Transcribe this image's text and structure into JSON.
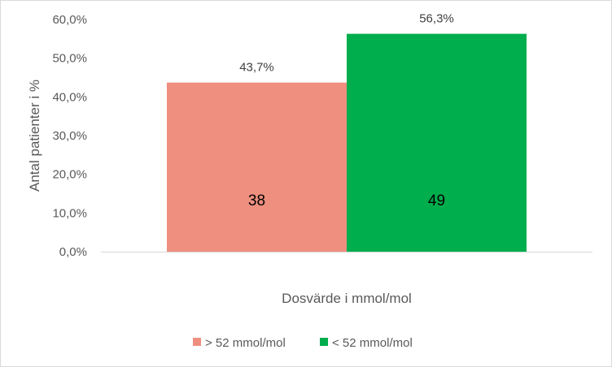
{
  "chart_data": {
    "type": "bar",
    "categories": [
      "Dosvärde i mmol/mol"
    ],
    "series": [
      {
        "name": "> 52 mmol/mol",
        "values": [
          43.7
        ],
        "label": "43,7%",
        "count_label": "38",
        "color": "#ee8f7f"
      },
      {
        "name": "< 52 mmol/mol",
        "values": [
          56.3
        ],
        "label": "56,3%",
        "count_label": "49",
        "color": "#00ae4d"
      }
    ],
    "xlabel": "Dosvärde i mmol/mol",
    "ylabel": "Antal patienter i %",
    "ylim": [
      0,
      60
    ],
    "yticks": [
      0,
      10,
      20,
      30,
      40,
      50,
      60
    ],
    "ytick_labels": [
      "0,0%",
      "10,0%",
      "20,0%",
      "30,0%",
      "40,0%",
      "50,0%",
      "60,0%"
    ],
    "grid": false,
    "legend_position": "bottom"
  }
}
